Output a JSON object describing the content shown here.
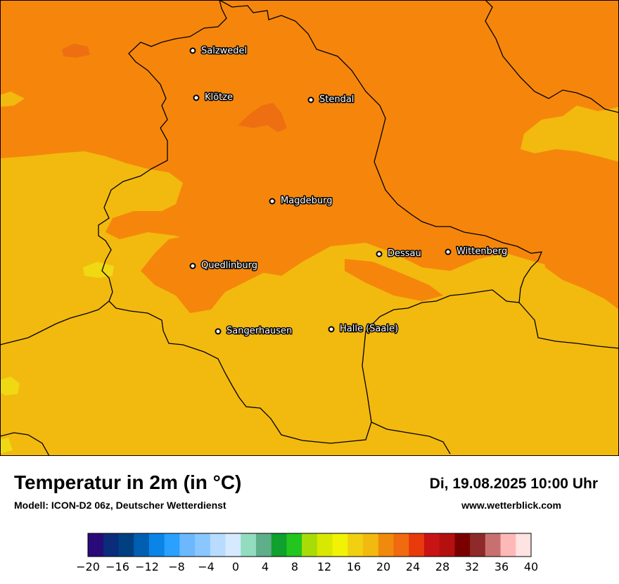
{
  "map": {
    "background_color": "#f5860b",
    "warm_area_color": "#f2b90f",
    "hot_patch_color": "#ee6f12",
    "cool_patch_color": "#f0d813",
    "border_color": "#000000",
    "cities": [
      {
        "name": "Salzwedel"
      },
      {
        "name": "Klötze"
      },
      {
        "name": "Stendal"
      },
      {
        "name": "Magdeburg"
      },
      {
        "name": "Dessau"
      },
      {
        "name": "Wittenberg"
      },
      {
        "name": "Quedlinburg"
      },
      {
        "name": "Sangerhausen"
      },
      {
        "name": "Halle (Saale)"
      }
    ]
  },
  "footer": {
    "title": "Temperatur in 2m (in °C)",
    "subtitle": "Modell: ICON-D2 06z, Deutscher Wetterdienst",
    "datetime": "Di, 19.08.2025 10:00 Uhr",
    "website": "www.wetterblick.com"
  },
  "legend": {
    "ticks": [
      "−20",
      "−16",
      "−12",
      "−8",
      "−4",
      "0",
      "4",
      "8",
      "12",
      "16",
      "20",
      "24",
      "28",
      "32",
      "36",
      "40"
    ],
    "colors": [
      "#2a0a78",
      "#0b2c7a",
      "#003f80",
      "#005fb0",
      "#0a84e6",
      "#2aa0ff",
      "#6bb8ff",
      "#8ac6ff",
      "#b8dcff",
      "#d6eaff",
      "#92dcc0",
      "#5fae8a",
      "#0fa02e",
      "#22c61e",
      "#a8dc08",
      "#d8e800",
      "#f2f205",
      "#f0d010",
      "#f2b90f",
      "#f08a0c",
      "#f06a10",
      "#e83a0c",
      "#c81414",
      "#b41010",
      "#7a0000",
      "#8e2a2a",
      "#c87070",
      "#ffb8b8",
      "#ffe2e2"
    ]
  }
}
